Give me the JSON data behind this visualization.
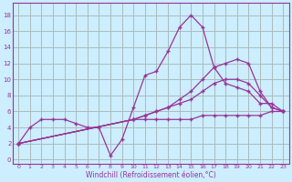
{
  "xlabel": "Windchill (Refroidissement éolien,°C)",
  "bg_color": "#cceeff",
  "grid_color": "#aabbbb",
  "line_color": "#993399",
  "x_ticks": [
    0,
    1,
    2,
    3,
    4,
    5,
    6,
    7,
    8,
    9,
    10,
    11,
    12,
    13,
    14,
    15,
    16,
    17,
    18,
    19,
    20,
    21,
    22,
    23
  ],
  "y_ticks": [
    0,
    2,
    4,
    6,
    8,
    10,
    12,
    14,
    16,
    18
  ],
  "ylim": [
    -0.5,
    19.5
  ],
  "xlim": [
    -0.5,
    23.5
  ],
  "line1_x": [
    0,
    1,
    2,
    3,
    4,
    5,
    6,
    7,
    8,
    9,
    10,
    11,
    12,
    13,
    14,
    15,
    16,
    17,
    18,
    19,
    20,
    21,
    22,
    23
  ],
  "line1_y": [
    2,
    4,
    5,
    5,
    5,
    4.5,
    4,
    4,
    0.5,
    2.5,
    6.5,
    10.5,
    11,
    13.5,
    16.5,
    18,
    16.5,
    11.5,
    9.5,
    9,
    8.5,
    7,
    7,
    6
  ],
  "line2_x": [
    0,
    10,
    11,
    12,
    13,
    14,
    15,
    16,
    17,
    18,
    19,
    20,
    21,
    22,
    23
  ],
  "line2_y": [
    2,
    5,
    5.5,
    6,
    6.5,
    7.5,
    8.5,
    10,
    11.5,
    12,
    12.5,
    12,
    8.5,
    6.5,
    6
  ],
  "line3_x": [
    0,
    10,
    11,
    12,
    13,
    14,
    15,
    16,
    17,
    18,
    19,
    20,
    21,
    22,
    23
  ],
  "line3_y": [
    2,
    5,
    5.5,
    6,
    6.5,
    7,
    7.5,
    8.5,
    9.5,
    10,
    10,
    9.5,
    8,
    6.5,
    6
  ],
  "line4_x": [
    0,
    10,
    11,
    12,
    13,
    14,
    15,
    16,
    17,
    18,
    19,
    20,
    21,
    22,
    23
  ],
  "line4_y": [
    2,
    5,
    5,
    5,
    5,
    5,
    5,
    5.5,
    5.5,
    5.5,
    5.5,
    5.5,
    5.5,
    6,
    6
  ]
}
